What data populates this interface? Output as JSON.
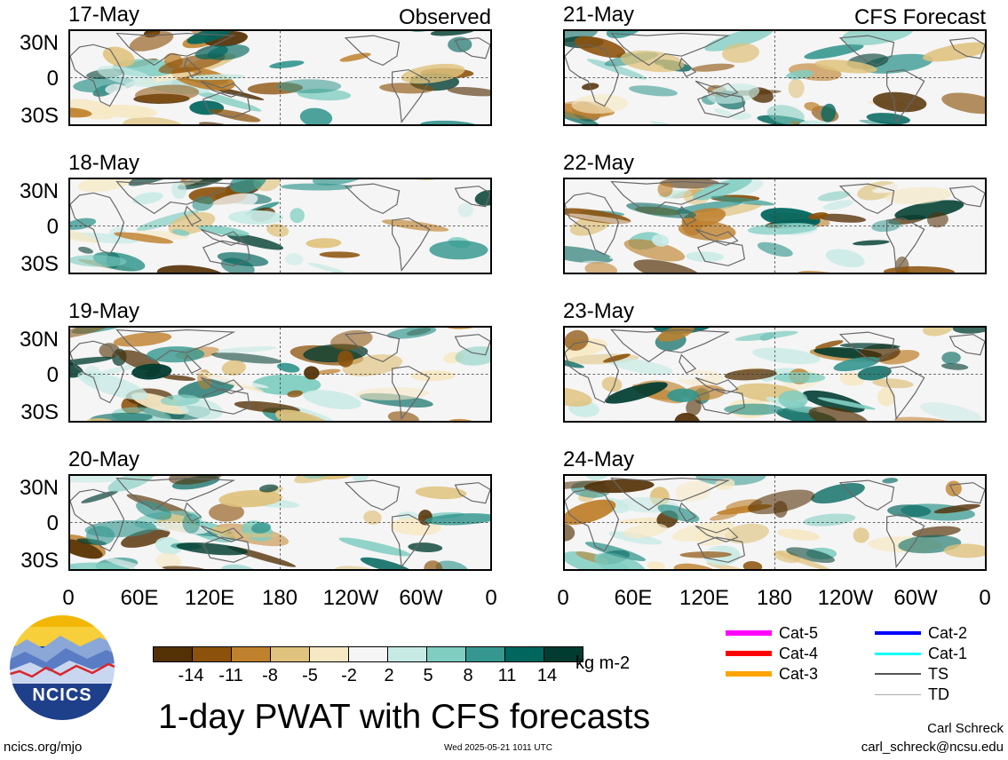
{
  "corner_labels": {
    "left": "Observed",
    "right": "CFS Forecast"
  },
  "panels_left": [
    {
      "date": "17-May"
    },
    {
      "date": "18-May"
    },
    {
      "date": "19-May"
    },
    {
      "date": "20-May"
    }
  ],
  "panels_right": [
    {
      "date": "21-May"
    },
    {
      "date": "22-May"
    },
    {
      "date": "23-May"
    },
    {
      "date": "24-May"
    }
  ],
  "lat_ticks": [
    "30N",
    "0",
    "30S"
  ],
  "lon_ticks": [
    "0",
    "60E",
    "120E",
    "180",
    "120W",
    "60W",
    "0"
  ],
  "colorbar": {
    "colors": [
      "#543005",
      "#8c510a",
      "#bf812d",
      "#dfc27d",
      "#f6e8c3",
      "#f5f5f5",
      "#c7eae5",
      "#80cdc1",
      "#35978f",
      "#01665e",
      "#003c30"
    ],
    "labels": [
      "-14",
      "-11",
      "-8",
      "-5",
      "-2",
      "2",
      "5",
      "8",
      "11",
      "14"
    ],
    "unit": "kg m-2"
  },
  "legend": [
    {
      "label": "Cat-5",
      "color": "#ff00ff"
    },
    {
      "label": "Cat-4",
      "color": "#ff0000"
    },
    {
      "label": "Cat-3",
      "color": "#ffa500"
    },
    {
      "label": "Cat-2",
      "color": "#0000ff"
    },
    {
      "label": "Cat-1",
      "color": "#00ffff"
    },
    {
      "label": "TS",
      "color": "#555555"
    },
    {
      "label": "TD",
      "color": "#aaaaaa"
    }
  ],
  "logo_text": "NCICS",
  "title": "1-day PWAT with CFS forecasts",
  "footer": {
    "url": "ncics.org/mjo",
    "timestamp": "Wed 2025-05-21 1011 UTC",
    "author": "Carl Schreck",
    "email": "carl_schreck@ncsu.edu"
  }
}
